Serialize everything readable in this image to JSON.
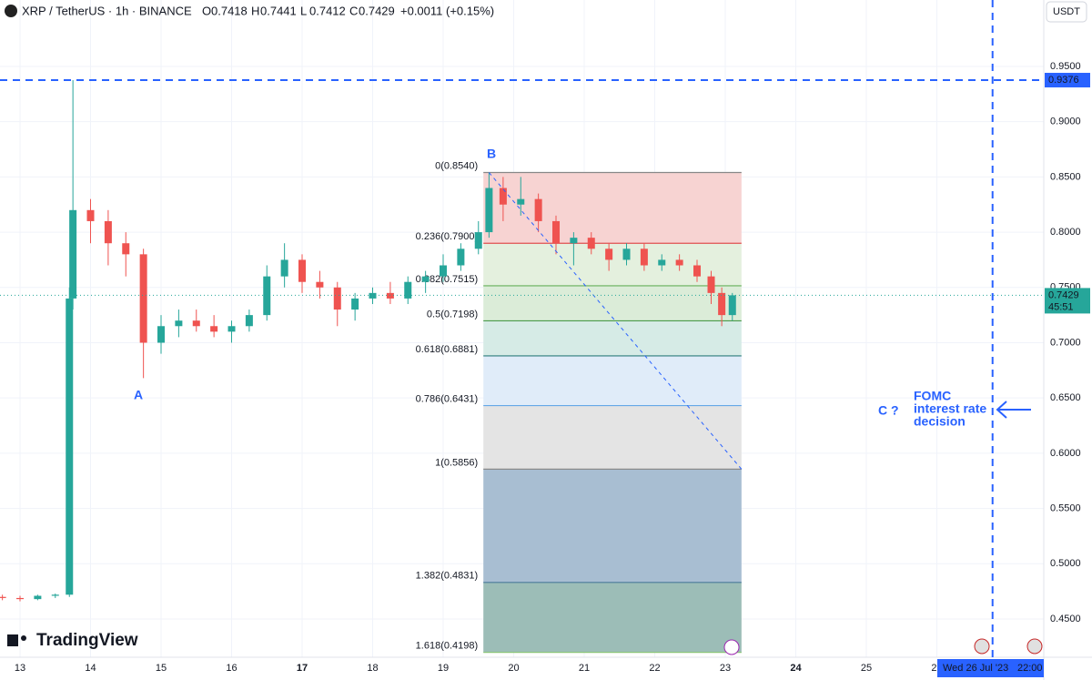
{
  "header": {
    "symbol": "XRP / TetherUS · 1h · BINANCE",
    "ohlc": [
      {
        "key": "O",
        "value": "0.7418"
      },
      {
        "key": "H",
        "value": "0.7441"
      },
      {
        "key": "L",
        "value": "0.7412"
      },
      {
        "key": "C",
        "value": "0.7429"
      }
    ],
    "change": "+0.0011 (+0.15%)"
  },
  "currency": "USDT",
  "brand": "TradingView",
  "chart_data": {
    "type": "candlestick",
    "x": [
      12.75,
      13.0,
      13.25,
      13.5,
      13.7,
      13.75,
      14.0,
      14.25,
      14.5,
      14.75,
      15.0,
      15.25,
      15.5,
      15.75,
      16.0,
      16.25,
      16.5,
      16.75,
      17.0,
      17.25,
      17.5,
      17.75,
      18.0,
      18.25,
      18.5,
      18.75,
      19.0,
      19.25,
      19.5,
      19.65,
      19.85,
      20.1,
      20.35,
      20.6,
      20.85,
      21.1,
      21.35,
      21.6,
      21.85,
      22.1,
      22.35,
      22.6,
      22.8,
      22.95,
      23.1
    ],
    "open": [
      0.47,
      0.469,
      0.468,
      0.471,
      0.472,
      0.74,
      0.82,
      0.81,
      0.79,
      0.78,
      0.7,
      0.715,
      0.72,
      0.715,
      0.71,
      0.715,
      0.725,
      0.76,
      0.775,
      0.755,
      0.75,
      0.73,
      0.74,
      0.745,
      0.74,
      0.755,
      0.76,
      0.77,
      0.785,
      0.8,
      0.84,
      0.825,
      0.83,
      0.81,
      0.79,
      0.795,
      0.785,
      0.775,
      0.785,
      0.77,
      0.775,
      0.77,
      0.76,
      0.745,
      0.725
    ],
    "high": [
      0.472,
      0.471,
      0.472,
      0.473,
      0.75,
      0.9376,
      0.83,
      0.82,
      0.8,
      0.785,
      0.725,
      0.73,
      0.73,
      0.725,
      0.72,
      0.73,
      0.77,
      0.79,
      0.78,
      0.765,
      0.755,
      0.745,
      0.75,
      0.755,
      0.76,
      0.765,
      0.78,
      0.79,
      0.81,
      0.854,
      0.85,
      0.85,
      0.835,
      0.815,
      0.8,
      0.8,
      0.79,
      0.79,
      0.79,
      0.78,
      0.78,
      0.775,
      0.765,
      0.75,
      0.745
    ],
    "low": [
      0.467,
      0.466,
      0.467,
      0.469,
      0.47,
      0.73,
      0.79,
      0.77,
      0.76,
      0.668,
      0.69,
      0.705,
      0.71,
      0.705,
      0.7,
      0.71,
      0.72,
      0.75,
      0.745,
      0.74,
      0.715,
      0.72,
      0.735,
      0.735,
      0.735,
      0.745,
      0.755,
      0.765,
      0.78,
      0.795,
      0.81,
      0.815,
      0.8,
      0.78,
      0.77,
      0.78,
      0.765,
      0.77,
      0.765,
      0.765,
      0.765,
      0.755,
      0.735,
      0.715,
      0.72
    ],
    "close": [
      0.469,
      0.468,
      0.471,
      0.472,
      0.74,
      0.82,
      0.81,
      0.79,
      0.78,
      0.7,
      0.715,
      0.72,
      0.715,
      0.71,
      0.715,
      0.725,
      0.76,
      0.775,
      0.755,
      0.75,
      0.73,
      0.74,
      0.745,
      0.74,
      0.755,
      0.76,
      0.77,
      0.785,
      0.8,
      0.84,
      0.825,
      0.83,
      0.81,
      0.79,
      0.795,
      0.785,
      0.775,
      0.785,
      0.77,
      0.775,
      0.77,
      0.76,
      0.745,
      0.725,
      0.7429
    ],
    "up_color": "#26a69a",
    "down_color": "#ef5350",
    "xlim": [
      12.716,
      27.516
    ],
    "xticks": [
      13,
      14,
      15,
      16,
      17,
      18,
      19,
      20,
      21,
      22,
      23,
      24,
      25,
      26
    ],
    "ylim": [
      0.4154,
      1.0101
    ],
    "yticks": [
      {
        "value": 0.95,
        "label": "0.9500"
      },
      {
        "value": 0.9,
        "label": "0.9000"
      },
      {
        "value": 0.85,
        "label": "0.8500"
      },
      {
        "value": 0.8,
        "label": "0.8000"
      },
      {
        "value": 0.75,
        "label": "0.7500"
      },
      {
        "value": 0.7,
        "label": "0.7000"
      },
      {
        "value": 0.65,
        "label": "0.6500"
      },
      {
        "value": 0.6,
        "label": "0.6000"
      },
      {
        "value": 0.55,
        "label": "0.5500"
      },
      {
        "value": 0.5,
        "label": "0.5000"
      },
      {
        "value": 0.45,
        "label": "0.4500"
      }
    ],
    "grid": true,
    "fib": {
      "x": [
        19.57,
        23.23
      ],
      "levels": [
        {
          "value": 0.854,
          "label": "0(0.8540)"
        },
        {
          "value": 0.79,
          "label": "0.236(0.7900)"
        },
        {
          "value": 0.7515,
          "label": "0.382(0.7515)"
        },
        {
          "value": 0.7198,
          "label": "0.5(0.7198)"
        },
        {
          "value": 0.6881,
          "label": "0.618(0.6881)"
        },
        {
          "value": 0.6431,
          "label": "0.786(0.6431)"
        },
        {
          "value": 0.5856,
          "label": "1(0.5856)"
        },
        {
          "value": 0.4831,
          "label": "1.382(0.4831)"
        },
        {
          "value": 0.4198,
          "label": "1.618(0.4198)"
        }
      ],
      "line_colors": [
        "#888888",
        "#e05050",
        "#66b05a",
        "#4a9a4a",
        "#2e7d7d",
        "#64a8e8",
        "#8a8a8a",
        "#4a7a9a",
        "#8bc47a"
      ],
      "zone_colors": [
        "#f7d3d2",
        "#e4f0de",
        "#dbecd8",
        "#d6ebe6",
        "#e0ecf9",
        "#e4e4e4",
        "#a8bed2",
        "#9cbdb7"
      ]
    },
    "trend_line": {
      "x": [
        19.65,
        23.23
      ],
      "y": [
        0.854,
        0.5856
      ]
    },
    "hline": {
      "value": 0.9376,
      "label": "0.9376"
    },
    "vline": {
      "value": 26.79,
      "label": "Wed 26 Jul '23",
      "time": "22:00"
    },
    "last_price": 0.7429,
    "countdown": "45:51",
    "annotations": [
      "A",
      "B",
      "C ?",
      "FOMC",
      "interest rate",
      "decision"
    ]
  }
}
